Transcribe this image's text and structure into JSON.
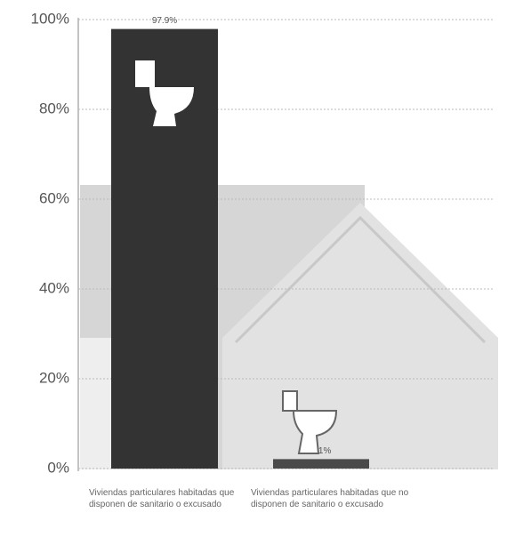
{
  "chart_data": {
    "type": "bar",
    "categories": [
      "Viviendas particulares habitadas que disponen de sanitario o excusado",
      "Viviendas particulares habitadas que no disponen de sanitario o excusado"
    ],
    "values": [
      97.9,
      2.1
    ],
    "value_labels": [
      "97.9%",
      "2.1%"
    ],
    "colors": [
      "#333333",
      "#4a4a4a"
    ],
    "ylim": [
      0,
      100
    ],
    "yticks": [
      {
        "value": 0,
        "label": "0%"
      },
      {
        "value": 20,
        "label": "20%"
      },
      {
        "value": 40,
        "label": "40%"
      },
      {
        "value": 60,
        "label": "60%"
      },
      {
        "value": 80,
        "label": "80%"
      },
      {
        "value": 100,
        "label": "100%"
      }
    ],
    "grid": true
  }
}
